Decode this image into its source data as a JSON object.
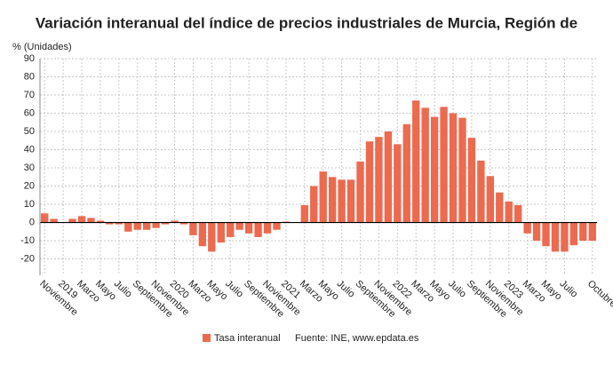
{
  "chart_data": {
    "type": "bar",
    "title": "Variación interanual del índice de precios industriales de Murcia, Región de",
    "y_label": "% (Unidades)",
    "categories": [
      "Noviembre",
      null,
      "2019",
      null,
      "Marzo",
      null,
      "Mayo",
      null,
      "Julio",
      null,
      "Septiembre",
      null,
      "Noviembre",
      null,
      "2020",
      null,
      "Marzo",
      null,
      "Mayo",
      null,
      "Julio",
      null,
      "Septiembre",
      null,
      "Noviembre",
      null,
      "2021",
      null,
      "Marzo",
      null,
      "Mayo",
      null,
      "Julio",
      null,
      "Septiembre",
      null,
      "Noviembre",
      null,
      "2022",
      null,
      "Marzo",
      null,
      "Mayo",
      null,
      "Julio",
      null,
      "Septiembre",
      null,
      "Noviembre",
      null,
      "2023",
      null,
      "Marzo",
      null,
      "Mayo",
      null,
      "Julio",
      null,
      null,
      "Octubre"
    ],
    "series": [
      {
        "name": "Tasa interanual",
        "color": "#ec6a4f",
        "values": [
          5,
          2,
          0,
          2,
          3.5,
          2.5,
          1,
          -1,
          -1,
          -5,
          -4,
          -4,
          -3,
          -1,
          1,
          -1,
          -7,
          -13,
          -16,
          -11,
          -8,
          -4,
          -6,
          -8,
          -6,
          -4,
          0.5,
          0,
          9.5,
          20,
          28,
          25,
          23.5,
          23.5,
          33.5,
          44.5,
          47,
          50,
          43,
          54,
          67,
          63,
          58,
          63.5,
          60,
          57.5,
          46.5,
          34,
          25.5,
          16.5,
          11.5,
          9.5,
          -6,
          -10,
          -13,
          -16,
          -16,
          -12.5,
          -10,
          -10
        ]
      }
    ],
    "ylim": [
      -29,
      90
    ],
    "yticks": [
      -20,
      -10,
      0,
      10,
      20,
      30,
      40,
      50,
      60,
      70,
      80,
      90
    ],
    "grid": true,
    "source": "Fuente: INE, www.epdata.es"
  }
}
